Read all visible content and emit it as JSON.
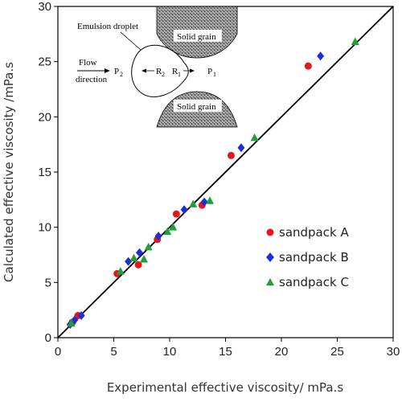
{
  "chart_data": {
    "type": "scatter",
    "xlabel": "Experimental effective viscosity/ mPa.s",
    "ylabel": "Calculated effective viscosity /mPa.s",
    "xlim": [
      0,
      30
    ],
    "ylim": [
      0,
      30
    ],
    "xticks": [
      0,
      5,
      10,
      15,
      20,
      25,
      30
    ],
    "yticks": [
      0,
      5,
      10,
      15,
      20,
      25,
      30
    ],
    "grid": false,
    "legend_position": "right-middle",
    "reference_line": {
      "from": [
        0,
        0
      ],
      "to": [
        30,
        30
      ],
      "color": "#000000"
    },
    "series": [
      {
        "name": "sandpack A",
        "marker": "circle",
        "color": "#e8151b",
        "points": [
          [
            1.3,
            1.4
          ],
          [
            1.8,
            2.0
          ],
          [
            5.3,
            5.8
          ],
          [
            7.2,
            6.6
          ],
          [
            8.9,
            8.9
          ],
          [
            10.6,
            11.2
          ],
          [
            12.9,
            12.0
          ],
          [
            15.5,
            16.5
          ],
          [
            22.4,
            24.6
          ]
        ]
      },
      {
        "name": "sandpack B",
        "marker": "diamond",
        "color": "#1f2fd6",
        "points": [
          [
            1.1,
            1.2
          ],
          [
            1.5,
            1.6
          ],
          [
            2.1,
            2.0
          ],
          [
            6.3,
            6.9
          ],
          [
            7.3,
            7.7
          ],
          [
            9.0,
            9.2
          ],
          [
            11.3,
            11.6
          ],
          [
            13.1,
            12.3
          ],
          [
            16.4,
            17.2
          ],
          [
            23.5,
            25.5
          ]
        ]
      },
      {
        "name": "sandpack C",
        "marker": "triangle",
        "color": "#1fa03a",
        "points": [
          [
            1.2,
            1.3
          ],
          [
            5.6,
            6.0
          ],
          [
            6.8,
            7.2
          ],
          [
            7.7,
            7.1
          ],
          [
            8.1,
            8.2
          ],
          [
            9.8,
            9.6
          ],
          [
            10.3,
            10.0
          ],
          [
            12.1,
            12.1
          ],
          [
            13.6,
            12.4
          ],
          [
            17.6,
            18.1
          ],
          [
            26.6,
            26.8
          ]
        ]
      }
    ]
  },
  "inset": {
    "emulsion_label": "Emulsion droplet",
    "grain_top_label": "Solid grain",
    "grain_bottom_label": "Solid grain",
    "flow_label_1": "Flow",
    "flow_label_2": "direction",
    "p2_main": "P",
    "p2_sub": "2",
    "r2_main": "R",
    "r2_sub": "2",
    "r1_main": "R",
    "r1_sub": "1",
    "p1_main": "P",
    "p1_sub": "1"
  }
}
